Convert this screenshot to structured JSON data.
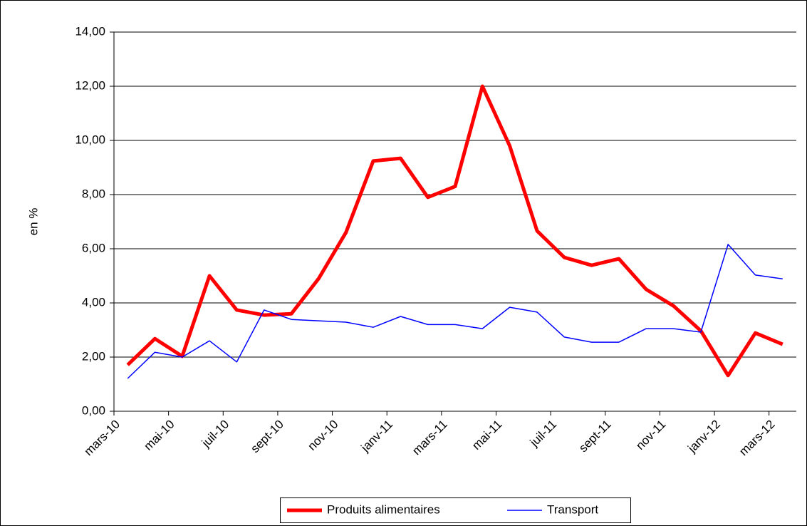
{
  "chart_data": {
    "type": "line",
    "ylabel": "en %",
    "categories": [
      "mars-10",
      null,
      "mai-10",
      null,
      "juil-10",
      null,
      "sept-10",
      null,
      "nov-10",
      null,
      "janv-11",
      null,
      "mars-11",
      null,
      "mai-11",
      null,
      "juil-11",
      null,
      "sept-11",
      null,
      "nov-11",
      null,
      "janv-12",
      null,
      "mars-12"
    ],
    "series": [
      {
        "name": "Produits alimentaires",
        "color": "#ff0000",
        "width": 5,
        "values": [
          1.71,
          2.68,
          2.03,
          5.0,
          3.74,
          3.55,
          3.6,
          4.9,
          6.6,
          9.24,
          9.34,
          7.9,
          8.3,
          12.0,
          9.8,
          6.66,
          5.68,
          5.39,
          5.63,
          4.5,
          3.89,
          2.97,
          1.32,
          2.89,
          2.47
        ]
      },
      {
        "name": "Transport",
        "color": "#0000ff",
        "width": 1.5,
        "values": [
          1.21,
          2.18,
          2.0,
          2.6,
          1.82,
          3.74,
          3.39,
          3.34,
          3.29,
          3.1,
          3.5,
          3.2,
          3.2,
          3.05,
          3.84,
          3.66,
          2.74,
          2.55,
          2.55,
          3.05,
          3.05,
          2.92,
          6.16,
          5.03,
          4.89
        ]
      }
    ],
    "ylim": [
      0,
      14
    ],
    "yticks": [
      {
        "value": 0,
        "label": "0,00"
      },
      {
        "value": 2,
        "label": "2,00"
      },
      {
        "value": 4,
        "label": "4,00"
      },
      {
        "value": 6,
        "label": "6,00"
      },
      {
        "value": 8,
        "label": "8,00"
      },
      {
        "value": 10,
        "label": "10,00"
      },
      {
        "value": 12,
        "label": "12,00"
      },
      {
        "value": 14,
        "label": "14,00"
      }
    ],
    "grid": true,
    "legend": "bottom"
  }
}
